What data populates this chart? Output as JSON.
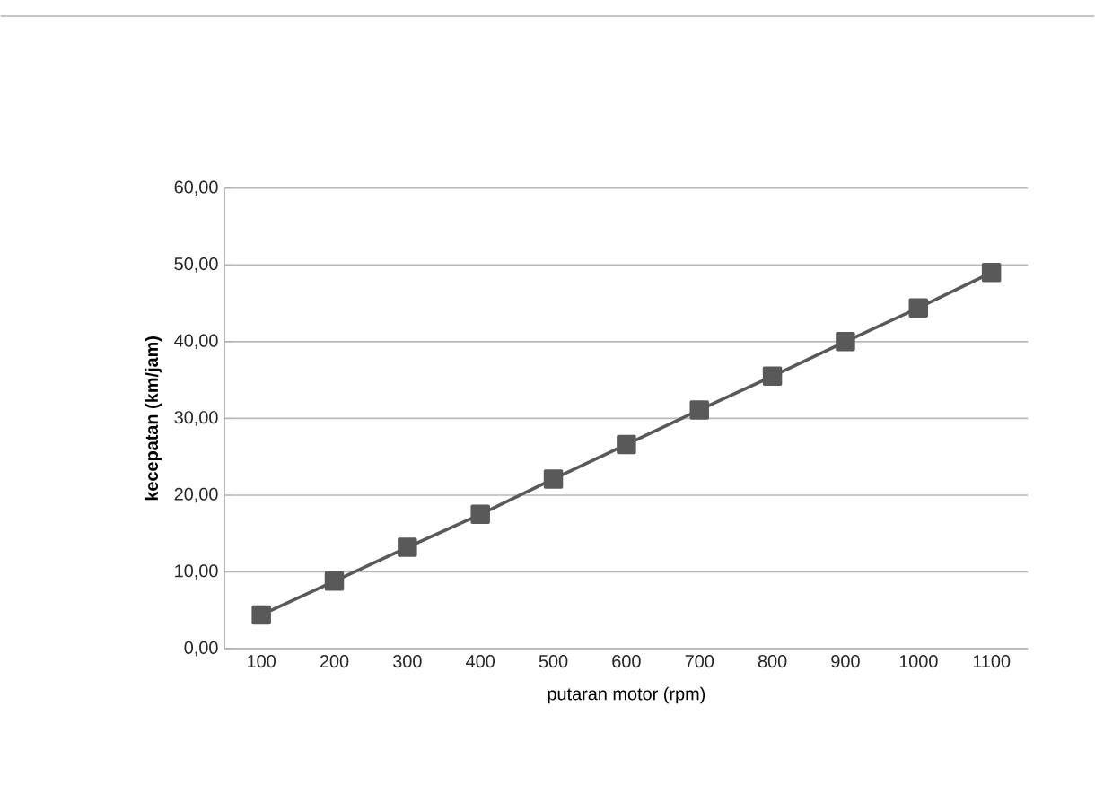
{
  "chart_data": {
    "type": "line",
    "xlabel": "putaran motor (rpm)",
    "ylabel": "kecepatan (km/jam)",
    "categories": [
      "100",
      "200",
      "300",
      "400",
      "500",
      "600",
      "700",
      "800",
      "900",
      "1000",
      "1100"
    ],
    "series": [
      {
        "color": "#595959",
        "values": [
          4.4,
          8.8,
          13.2,
          17.5,
          22.1,
          26.6,
          31.1,
          35.5,
          40.0,
          44.4,
          49.0
        ]
      }
    ],
    "ylim": [
      0,
      60
    ],
    "yticks": [
      {
        "value": 0,
        "label": "0,00"
      },
      {
        "value": 10,
        "label": "10,00"
      },
      {
        "value": 20,
        "label": "20,00"
      },
      {
        "value": 30,
        "label": "30,00"
      },
      {
        "value": 40,
        "label": "40,00"
      },
      {
        "value": 50,
        "label": "50,00"
      },
      {
        "value": 60,
        "label": "60,00"
      }
    ],
    "grid": "y",
    "marker": "square",
    "line_style": "solid"
  }
}
